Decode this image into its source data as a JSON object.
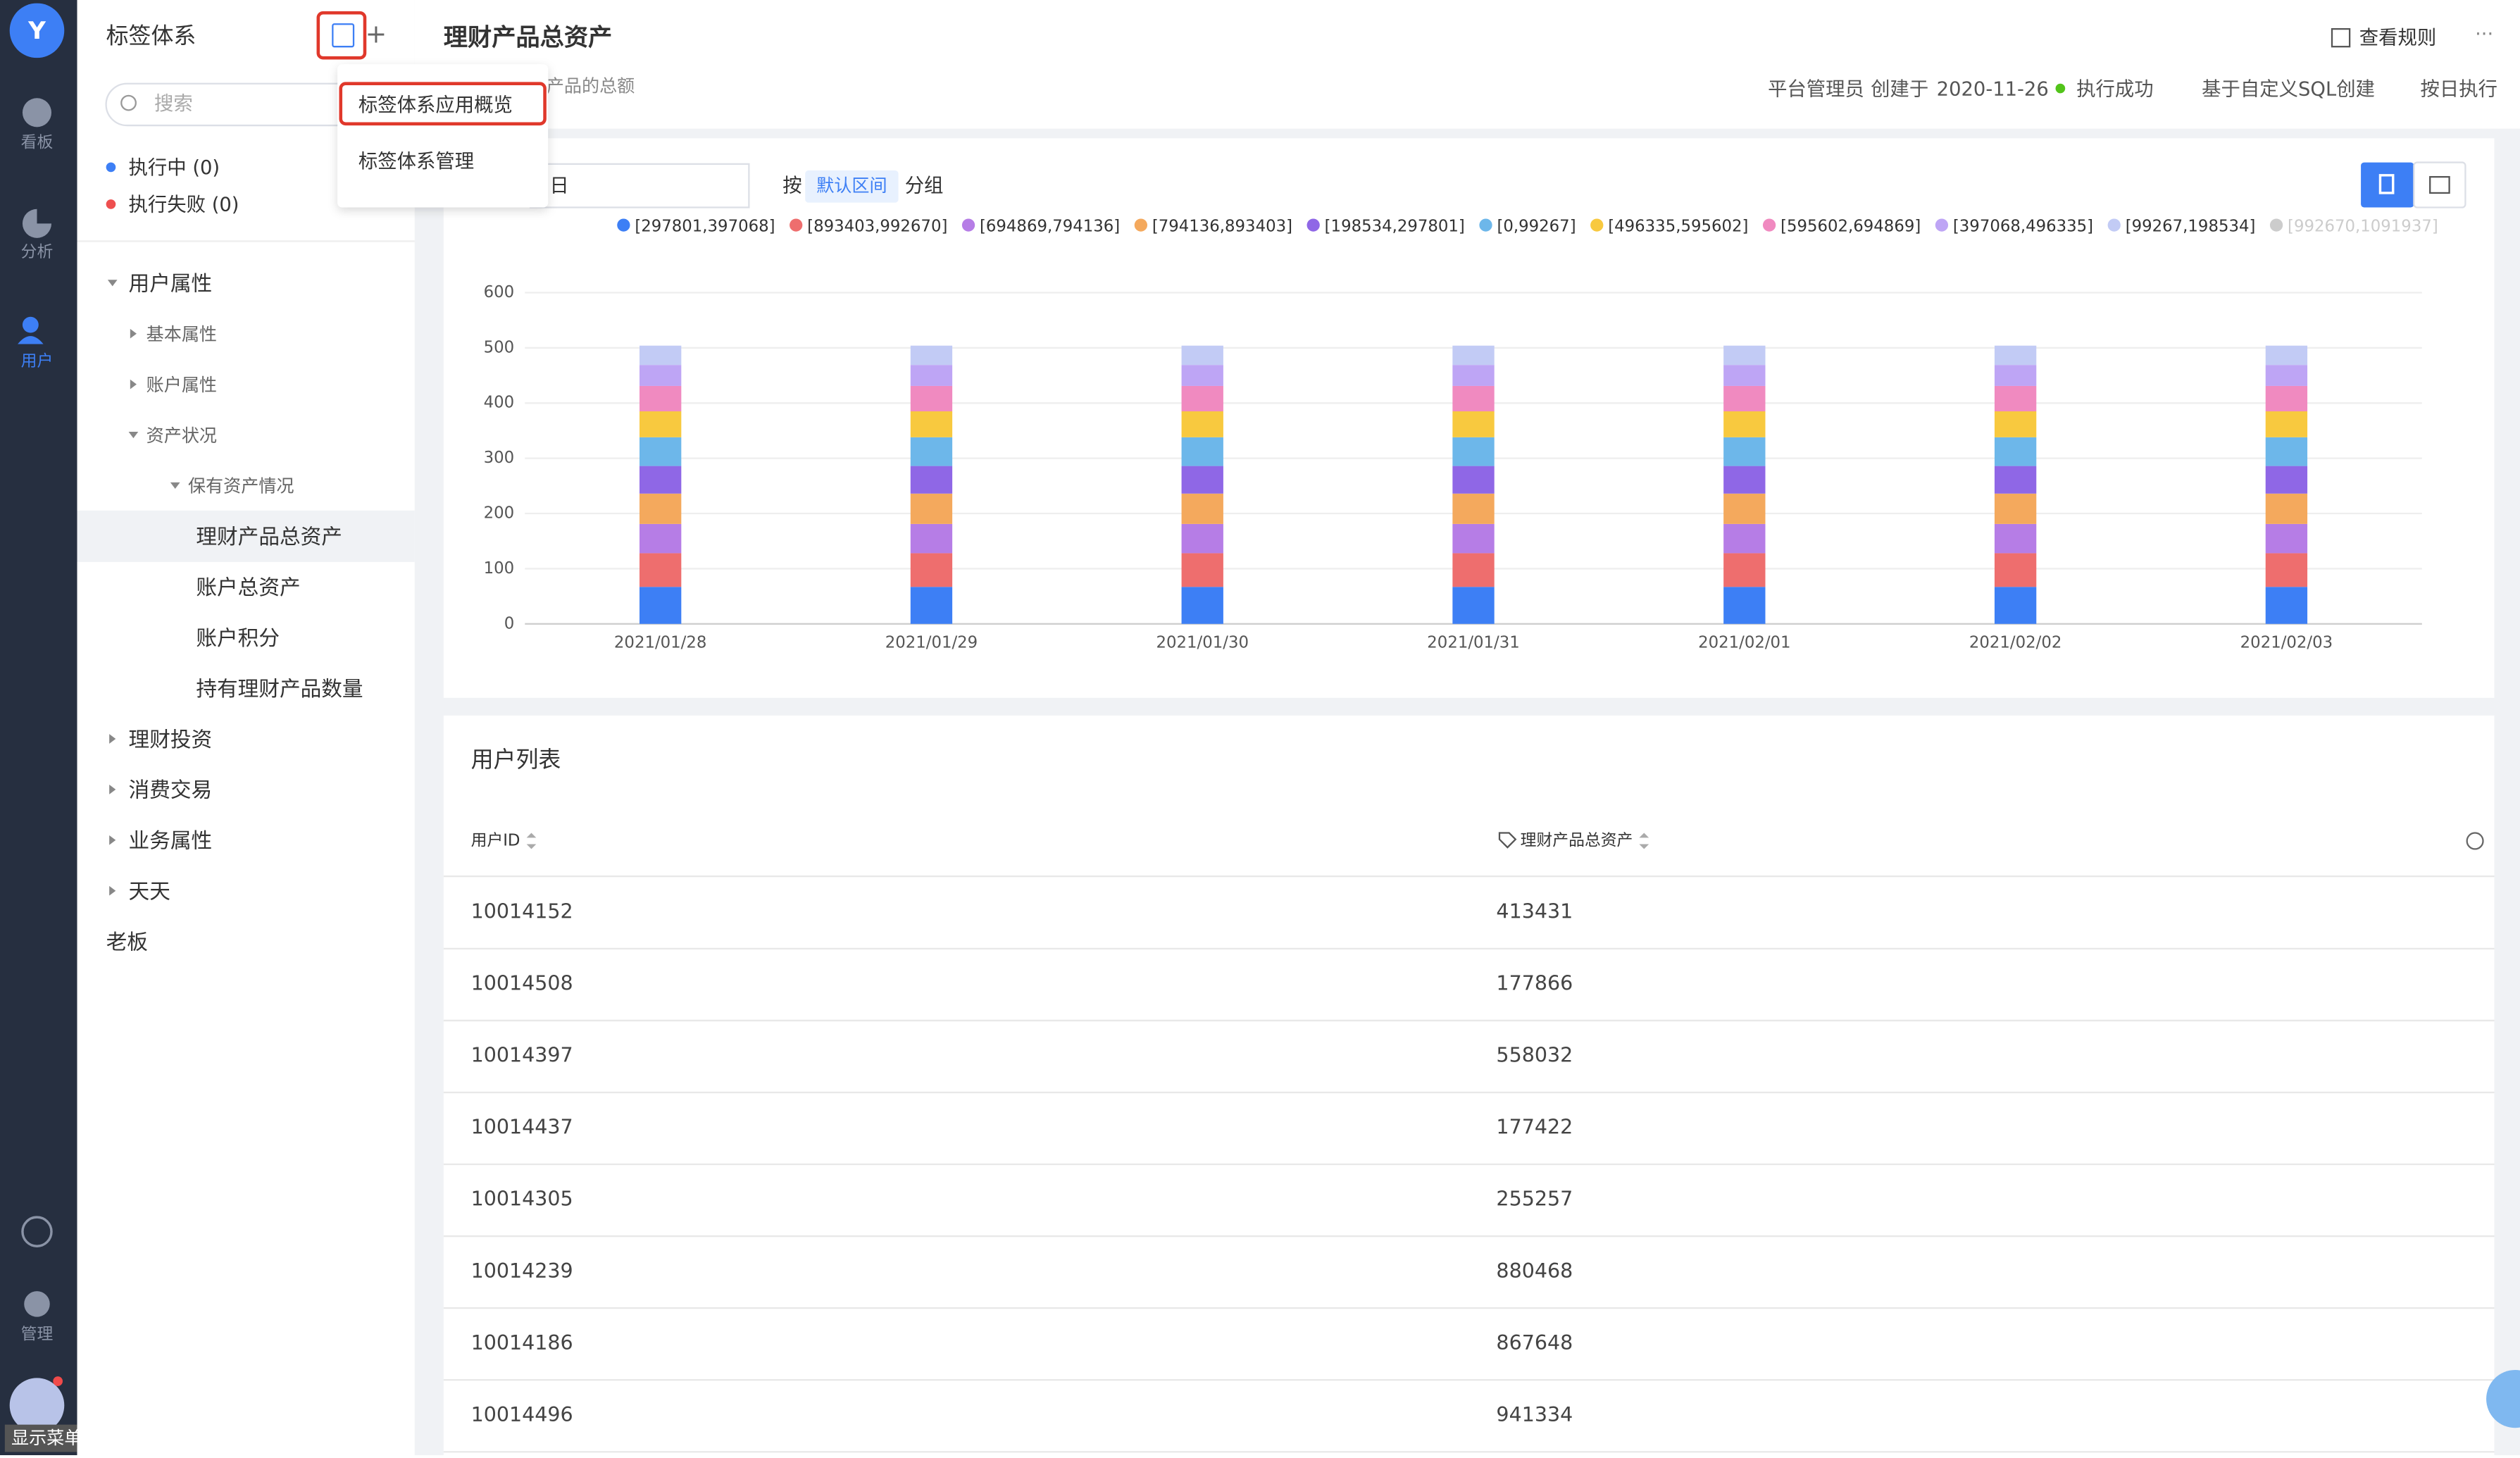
{
  "sidebar": {
    "avatar": "Y",
    "nav": [
      "看板",
      "分析",
      "用户"
    ],
    "admin": "管理",
    "show_menu": "显示菜单"
  },
  "tag_panel": {
    "title": "标签体系",
    "search_placeholder": "搜索",
    "status": [
      "执行中 (0)",
      "执行失败 (0)"
    ],
    "tree": [
      {
        "label": "用户属性",
        "level": 0,
        "expanded": true
      },
      {
        "label": "基本属性",
        "level": 1,
        "expanded": false
      },
      {
        "label": "账户属性",
        "level": 1,
        "expanded": false
      },
      {
        "label": "资产状况",
        "level": 1,
        "expanded": true
      },
      {
        "label": "保有资产情况",
        "level": 2,
        "expanded": true
      },
      {
        "label": "理财产品总资产",
        "level": 3,
        "selected": true
      },
      {
        "label": "账户总资产",
        "level": 3
      },
      {
        "label": "账户积分",
        "level": 3
      },
      {
        "label": "持有理财产品数量",
        "level": 3
      },
      {
        "label": "理财投资",
        "level": 0,
        "expanded": false
      },
      {
        "label": "消费交易",
        "level": 0,
        "expanded": false
      },
      {
        "label": "业务属性",
        "level": 0,
        "expanded": false
      },
      {
        "label": "天天",
        "level": 0,
        "expanded": false
      },
      {
        "label": "老板",
        "level": 0
      }
    ]
  },
  "dropdown": [
    "标签体系应用概览",
    "标签体系管理"
  ],
  "header": {
    "title": "理财产品总资产",
    "subtitle": "产品的总额",
    "view_rules": "查看规则",
    "meta": [
      "平台管理员",
      "创建于",
      "2020-11-26",
      "执行成功",
      "基于自定义SQL创建",
      "按日执行"
    ]
  },
  "controls": {
    "date": "日",
    "group_prefix": "按",
    "group_value": "默认区间",
    "group_suffix": "分组"
  },
  "chart_data": {
    "type": "stacked-bar",
    "categories": [
      "2021/01/28",
      "2021/01/29",
      "2021/01/30",
      "2021/01/31",
      "2021/02/01",
      "2021/02/02",
      "2021/02/03"
    ],
    "series": [
      {
        "name": "[297801,397068]",
        "color": "#3d7ff5",
        "values": [
          67,
          67,
          67,
          67,
          67,
          67,
          67
        ]
      },
      {
        "name": "[893403,992670]",
        "color": "#ee6e6e",
        "values": [
          61,
          61,
          61,
          61,
          61,
          61,
          61
        ]
      },
      {
        "name": "[694869,794136]",
        "color": "#b67de6",
        "values": [
          53,
          53,
          53,
          53,
          53,
          53,
          53
        ]
      },
      {
        "name": "[794136,893403]",
        "color": "#f4a95d",
        "values": [
          55,
          55,
          55,
          55,
          55,
          55,
          55
        ]
      },
      {
        "name": "[198534,297801]",
        "color": "#8f67e6",
        "values": [
          50,
          50,
          50,
          50,
          50,
          50,
          50
        ]
      },
      {
        "name": "[0,99267]",
        "color": "#6db7ea",
        "values": [
          52,
          52,
          52,
          52,
          52,
          52,
          52
        ]
      },
      {
        "name": "[496335,595602]",
        "color": "#f8c93f",
        "values": [
          47,
          47,
          47,
          47,
          47,
          47,
          47
        ]
      },
      {
        "name": "[595602,694869]",
        "color": "#f08ac0",
        "values": [
          46,
          46,
          46,
          46,
          46,
          46,
          46
        ]
      },
      {
        "name": "[397068,496335]",
        "color": "#bea5f5",
        "values": [
          38,
          38,
          38,
          38,
          38,
          38,
          38
        ]
      },
      {
        "name": "[99267,198534]",
        "color": "#c2cbf5",
        "values": [
          35,
          35,
          35,
          35,
          35,
          35,
          35
        ]
      },
      {
        "name": "[992670,1091937]",
        "color": "#cccccc",
        "hidden": true,
        "values": [
          null,
          null,
          null,
          null,
          null,
          null,
          null
        ]
      }
    ],
    "ylim": [
      0,
      600
    ],
    "yticks": [
      0,
      100,
      200,
      300,
      400,
      500,
      600
    ],
    "grid": true
  },
  "table": {
    "title": "用户列表",
    "columns": [
      "用户ID",
      "理财产品总资产"
    ],
    "rows": [
      [
        "10014152",
        413431
      ],
      [
        "10014508",
        177866
      ],
      [
        "10014397",
        558032
      ],
      [
        "10014437",
        177422
      ],
      [
        "10014305",
        255257
      ],
      [
        "10014239",
        880468
      ],
      [
        "10014186",
        867648
      ],
      [
        "10014496",
        941334
      ]
    ]
  }
}
